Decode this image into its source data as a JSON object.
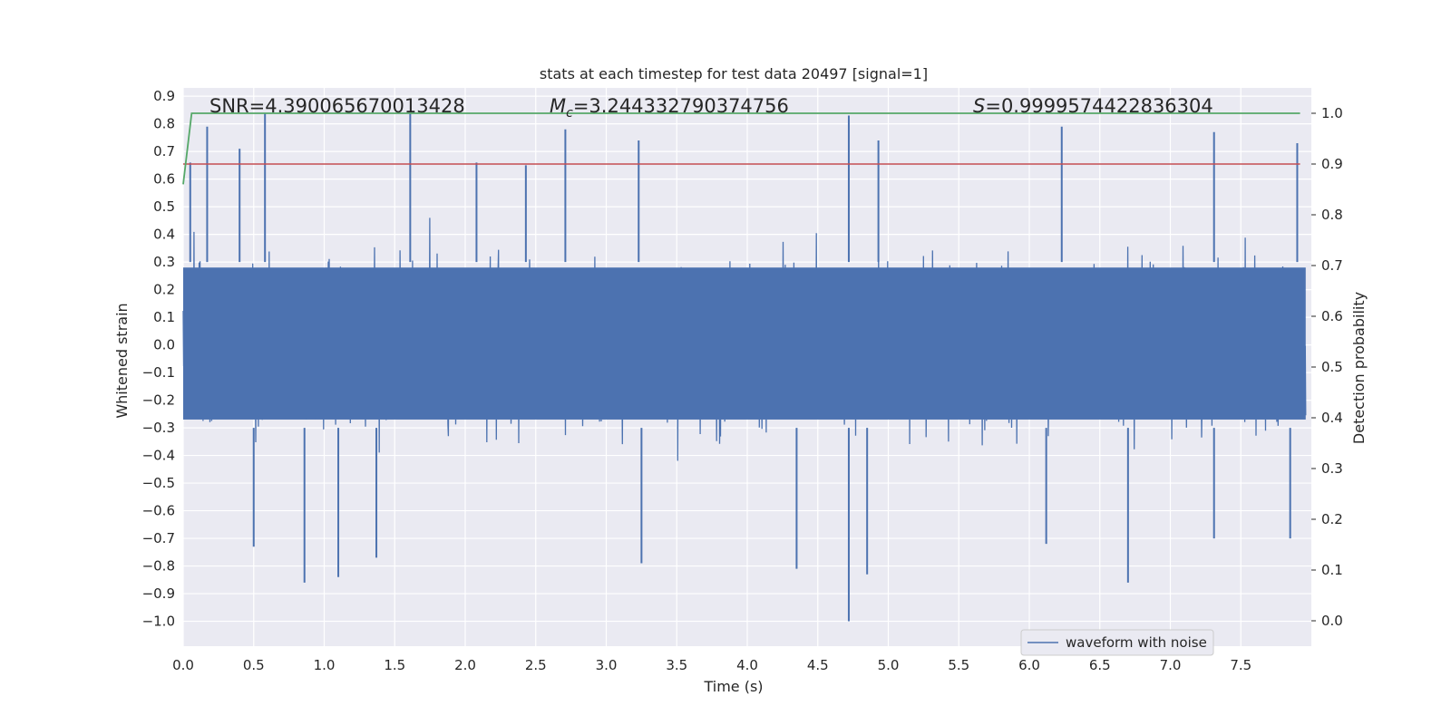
{
  "chart_data": {
    "type": "line",
    "title": "stats at each timestep for test data 20497 [signal=1]",
    "xlabel": "Time (s)",
    "ylabel": "Whitened strain",
    "ylabel_right": "Detection probability",
    "xlim": [
      0.0,
      8.0
    ],
    "ylim": [
      -1.09,
      0.93
    ],
    "ylim_right": [
      -0.05,
      1.05
    ],
    "x_ticks": [
      "0.0",
      "0.5",
      "1.0",
      "1.5",
      "2.0",
      "2.5",
      "3.0",
      "3.5",
      "4.0",
      "4.5",
      "5.0",
      "5.5",
      "6.0",
      "6.5",
      "7.0",
      "7.5"
    ],
    "y_ticks": [
      "0.9",
      "0.8",
      "0.7",
      "0.6",
      "0.5",
      "0.4",
      "0.3",
      "0.2",
      "0.1",
      "0.0",
      "−0.1",
      "−0.2",
      "−0.3",
      "−0.4",
      "−0.5",
      "−0.6",
      "−0.7",
      "−0.8",
      "−0.9",
      "−1.0"
    ],
    "y_ticks_right": [
      "1.0",
      "0.9",
      "0.8",
      "0.7",
      "0.6",
      "0.5",
      "0.4",
      "0.3",
      "0.2",
      "0.1",
      "0.0"
    ],
    "annotations": {
      "snr": "SNR=4.390065670013428",
      "mc": "=3.244332790374756",
      "mc_symbol": "M",
      "mc_sub": "c",
      "s": "=0.9999574422836304",
      "s_symbol": "S"
    },
    "series": [
      {
        "name": "waveform with noise",
        "axis": "left",
        "color": "#4c72b0",
        "description": "dense noisy strain, roughly symmetric about 0, core amplitude about 0.3, spikes to about 0.85 and down to -1.0 near t=4.72",
        "peaks": [
          {
            "x": 0.05,
            "y": 0.66
          },
          {
            "x": 0.17,
            "y": 0.79
          },
          {
            "x": 0.4,
            "y": 0.71
          },
          {
            "x": 0.58,
            "y": 0.84
          },
          {
            "x": 1.61,
            "y": 0.84
          },
          {
            "x": 2.08,
            "y": 0.66
          },
          {
            "x": 2.43,
            "y": 0.65
          },
          {
            "x": 2.71,
            "y": 0.78
          },
          {
            "x": 3.23,
            "y": 0.74
          },
          {
            "x": 4.72,
            "y": 0.83
          },
          {
            "x": 4.93,
            "y": 0.74
          },
          {
            "x": 6.23,
            "y": 0.79
          },
          {
            "x": 7.31,
            "y": 0.77
          },
          {
            "x": 7.9,
            "y": 0.73
          }
        ],
        "troughs": [
          {
            "x": 0.5,
            "y": -0.73
          },
          {
            "x": 0.86,
            "y": -0.86
          },
          {
            "x": 1.1,
            "y": -0.84
          },
          {
            "x": 1.37,
            "y": -0.77
          },
          {
            "x": 3.25,
            "y": -0.79
          },
          {
            "x": 4.35,
            "y": -0.81
          },
          {
            "x": 4.72,
            "y": -1.0
          },
          {
            "x": 4.85,
            "y": -0.83
          },
          {
            "x": 6.12,
            "y": -0.72
          },
          {
            "x": 6.7,
            "y": -0.86
          },
          {
            "x": 7.31,
            "y": -0.7
          },
          {
            "x": 7.85,
            "y": -0.7
          }
        ]
      },
      {
        "name": "detection probability",
        "axis": "right",
        "color": "#55a868",
        "x": [
          0.0,
          0.06,
          7.92
        ],
        "values": [
          0.86,
          1.0,
          1.0
        ]
      },
      {
        "name": "threshold",
        "axis": "right",
        "color": "#c44e52",
        "x": [
          0.0,
          7.92
        ],
        "values": [
          0.9,
          0.9
        ]
      }
    ],
    "legend": {
      "entries": [
        "waveform with noise"
      ],
      "placement": "lower-right"
    },
    "grid": true
  }
}
